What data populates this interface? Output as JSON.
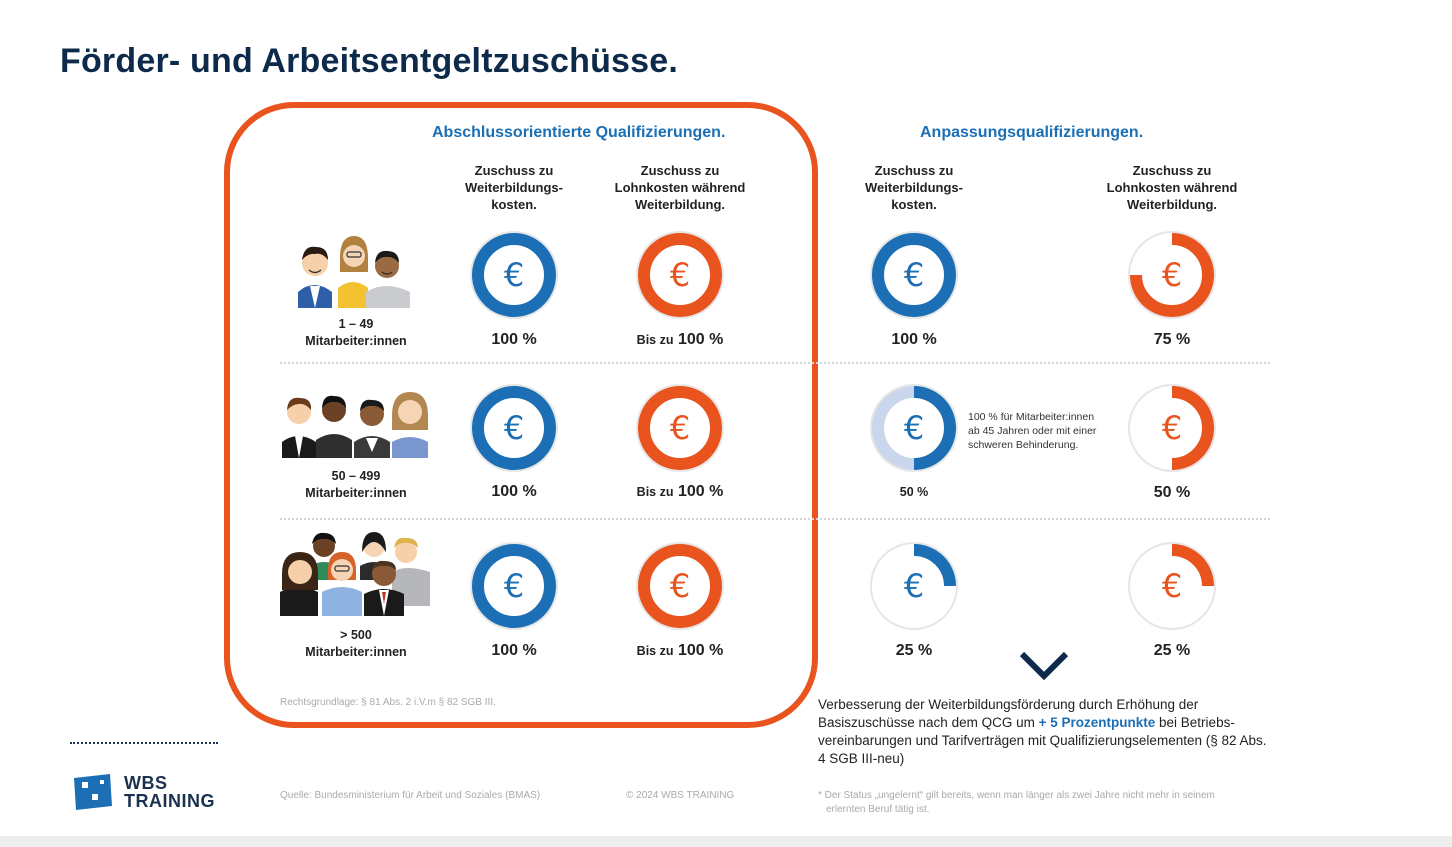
{
  "page": {
    "title": "Förder- und Arbeitsentgeltzuschüsse."
  },
  "sections": {
    "left_title": "Abschlussorientierte Qualifizierungen.",
    "right_title": "Anpassungsqualifizierungen."
  },
  "columns": {
    "weiterbildung": [
      "Zuschuss zu",
      "Weiterbildungs-",
      "kosten."
    ],
    "lohnkosten": [
      "Zuschuss zu",
      "Lohnkosten während",
      "Weiterbildung."
    ]
  },
  "rows": [
    {
      "size": "1 – 49",
      "label": "Mitarbeiter:innen",
      "left_wb": {
        "pct": "100 %",
        "fill": 1.0
      },
      "left_lk": {
        "prefix": "Bis zu",
        "pct": "100 %",
        "fill": 1.0
      },
      "right_wb": {
        "pct": "100 %",
        "fill": 1.0
      },
      "right_lk": {
        "pct": "75 %",
        "fill": 0.75
      }
    },
    {
      "size": "50 – 499",
      "label": "Mitarbeiter:innen",
      "left_wb": {
        "pct": "100 %",
        "fill": 1.0
      },
      "left_lk": {
        "prefix": "Bis zu",
        "pct": "100 %",
        "fill": 1.0
      },
      "right_wb": {
        "pct": "50 %",
        "fill": 0.5,
        "extra_fill": 0.5
      },
      "right_lk": {
        "pct": "50 %",
        "fill": 0.5
      }
    },
    {
      "size": "> 500",
      "label": "Mitarbeiter:innen",
      "left_wb": {
        "pct": "100 %",
        "fill": 1.0
      },
      "left_lk": {
        "prefix": "Bis zu",
        "pct": "100 %",
        "fill": 1.0
      },
      "right_wb": {
        "pct": "25 %",
        "fill": 0.25
      },
      "right_lk": {
        "pct": "25 %",
        "fill": 0.25
      }
    }
  ],
  "note_50_499": "100 % für Mitarbeiter:innen ab 45 Jahren oder mit einer schweren Behinderung.",
  "legal_basis": "Rechtsgrundlage: § 81 Abs. 2 i.V.m § 82 SGB III.",
  "improvement": {
    "part1": "Verbesserung der Weiterbildungsförderung durch Erhöhung der Basiszuschüsse nach dem QCG um",
    "highlight": "+ 5 Prozentpunkte",
    "part2": "bei Betriebs­vereinbarungen und Tarifverträgen mit Qualifizierungselementen (§ 82 Abs. 4 SGB III-neu)"
  },
  "footer": {
    "source": "Quelle: Bundesministerium für Arbeit und Soziales (BMAS)",
    "copyright": "© 2024 WBS TRAINING",
    "status_note_1": "* Der Status „ungelernt“ gilt bereits, wenn man länger als zwei Jahre nicht mehr in seinem",
    "status_note_2": "erlernten Beruf tätig ist."
  },
  "logo": {
    "line1": "WBS",
    "line2": "TRAINING"
  },
  "symbols": {
    "currency": "€"
  },
  "colors": {
    "blue": "#1c6fb5",
    "orange": "#e8531e",
    "light_blue": "#c9d6ec",
    "grey_ring": "#e6e6e6",
    "navy": "#0d2a4a"
  },
  "icons": {
    "group_small": "people-group-3-icon",
    "group_medium": "people-group-4-icon",
    "group_large": "people-group-7-icon",
    "chevron": "chevron-down-icon",
    "logo": "wbs-logo-icon"
  }
}
